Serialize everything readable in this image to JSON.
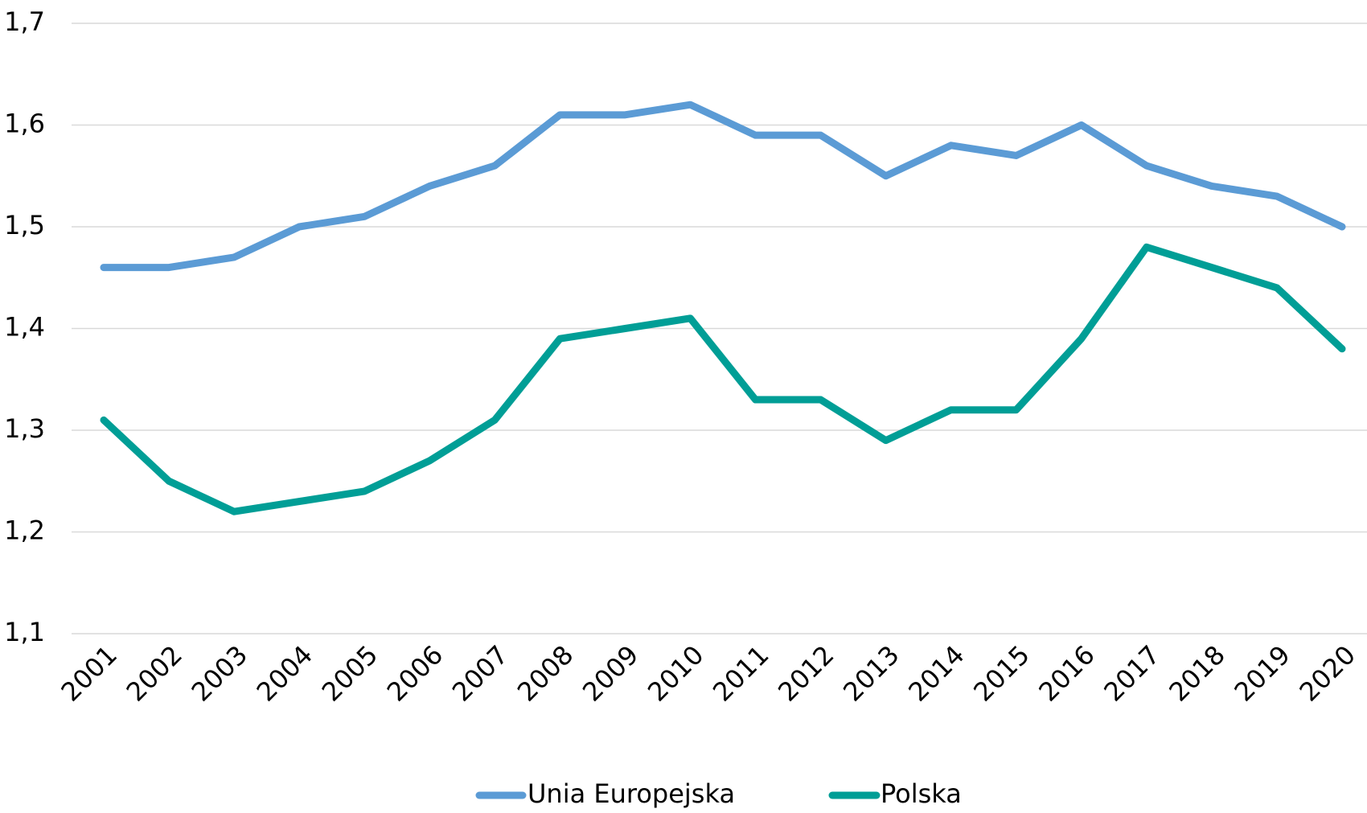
{
  "chart_data": {
    "type": "line",
    "categories": [
      "2001",
      "2002",
      "2003",
      "2004",
      "2005",
      "2006",
      "2007",
      "2008",
      "2009",
      "2010",
      "2011",
      "2012",
      "2013",
      "2014",
      "2015",
      "2016",
      "2017",
      "2018",
      "2019",
      "2020"
    ],
    "series": [
      {
        "name": "Unia Europejska",
        "color": "#5b9bd5",
        "values": [
          1.46,
          1.46,
          1.47,
          1.5,
          1.51,
          1.54,
          1.56,
          1.61,
          1.61,
          1.62,
          1.59,
          1.59,
          1.55,
          1.58,
          1.57,
          1.6,
          1.56,
          1.54,
          1.53,
          1.5
        ]
      },
      {
        "name": "Polska",
        "color": "#009e96",
        "values": [
          1.31,
          1.25,
          1.22,
          1.23,
          1.24,
          1.27,
          1.31,
          1.39,
          1.4,
          1.41,
          1.33,
          1.33,
          1.29,
          1.32,
          1.32,
          1.39,
          1.48,
          1.46,
          1.44,
          1.38
        ]
      }
    ],
    "ylim": [
      1.1,
      1.7
    ],
    "yticks": [
      {
        "value": 1.1,
        "label": "1,1"
      },
      {
        "value": 1.2,
        "label": "1,2"
      },
      {
        "value": 1.3,
        "label": "1,3"
      },
      {
        "value": 1.4,
        "label": "1,4"
      },
      {
        "value": 1.5,
        "label": "1,5"
      },
      {
        "value": 1.6,
        "label": "1,6"
      },
      {
        "value": 1.7,
        "label": "1,7"
      }
    ],
    "grid": true,
    "legend": "bottom"
  }
}
